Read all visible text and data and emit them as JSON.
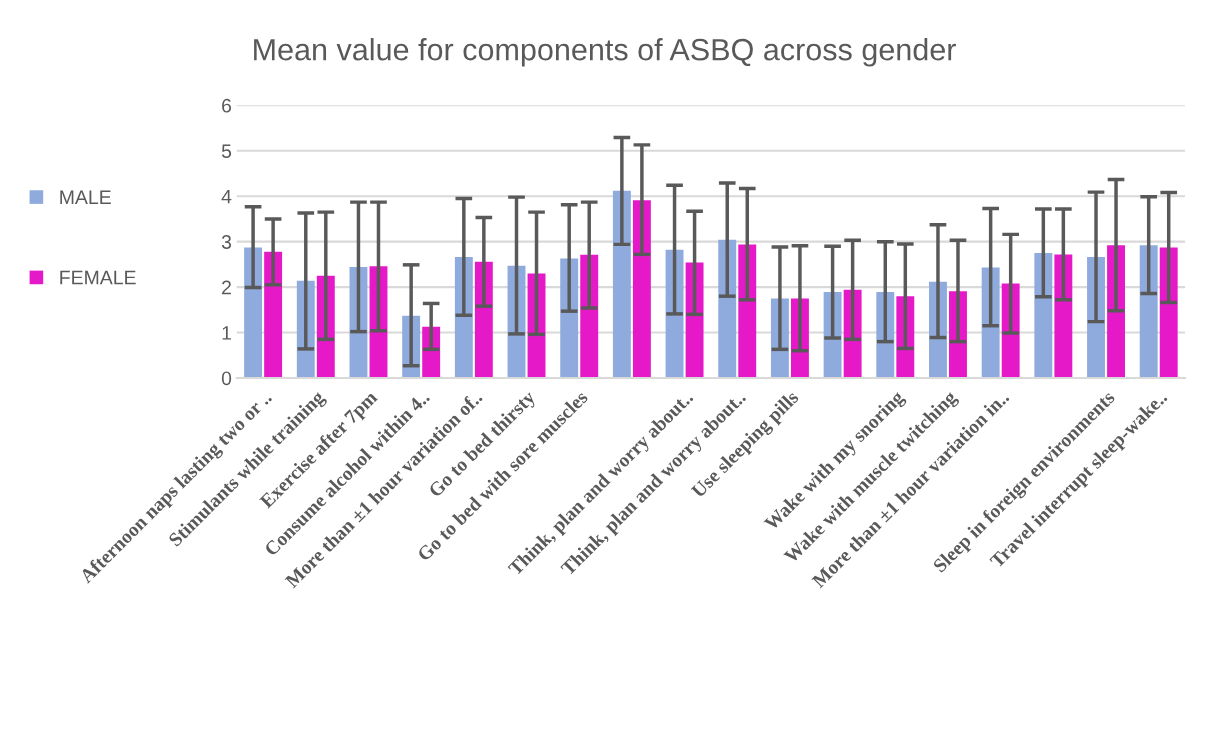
{
  "chart_data": {
    "type": "bar",
    "title": "Mean value for components of ASBQ across gender",
    "categories": [
      "Afternoon naps lasting two or ..",
      "Stimulants while training",
      "Exercise after 7pm",
      "Consume alcohol within 4..",
      "More than ±1 hour variation of..",
      "Go to bed thirsty",
      "Go to bed with sore muscles",
      null,
      "Think, plan and worry about..",
      "Think, plan and worry about..",
      "Use sleeping pills",
      null,
      "Wake with my snoring",
      "Wake with muscle twitching",
      "More than ±1 hour variation in..",
      null,
      "Sleep in foreign environments",
      "Travel interrupt sleep-wake.."
    ],
    "series": [
      {
        "name": "MALE",
        "color": "#8faadc",
        "values": [
          2.87,
          2.14,
          2.44,
          1.37,
          2.66,
          2.47,
          2.63,
          4.12,
          2.82,
          3.04,
          1.75,
          1.89,
          1.89,
          2.12,
          2.43,
          2.75,
          2.66,
          2.92
        ],
        "errors": [
          [
            1.99,
            3.77
          ],
          [
            0.64,
            3.63
          ],
          [
            1.02,
            3.87
          ],
          [
            0.27,
            2.49
          ],
          [
            1.38,
            3.95
          ],
          [
            0.97,
            3.98
          ],
          [
            1.47,
            3.81
          ],
          [
            2.94,
            5.29
          ],
          [
            1.41,
            4.24
          ],
          [
            1.8,
            4.29
          ],
          [
            0.63,
            2.88
          ],
          [
            0.88,
            2.9
          ],
          [
            0.8,
            3.0
          ],
          [
            0.89,
            3.37
          ],
          [
            1.15,
            3.73
          ],
          [
            1.79,
            3.72
          ],
          [
            1.24,
            4.09
          ],
          [
            1.86,
            3.99
          ]
        ]
      },
      {
        "name": "FEMALE",
        "color": "#e619c8",
        "values": [
          2.78,
          2.25,
          2.46,
          1.13,
          2.56,
          2.3,
          2.71,
          3.91,
          2.54,
          2.94,
          1.75,
          1.94,
          1.8,
          1.91,
          2.08,
          2.72,
          2.92,
          2.87
        ],
        "errors": [
          [
            2.05,
            3.5
          ],
          [
            0.85,
            3.65
          ],
          [
            1.04,
            3.87
          ],
          [
            0.63,
            1.64
          ],
          [
            1.58,
            3.53
          ],
          [
            0.96,
            3.65
          ],
          [
            1.54,
            3.87
          ],
          [
            2.72,
            5.13
          ],
          [
            1.4,
            3.67
          ],
          [
            1.72,
            4.17
          ],
          [
            0.6,
            2.91
          ],
          [
            0.85,
            3.03
          ],
          [
            0.65,
            2.95
          ],
          [
            0.8,
            3.03
          ],
          [
            0.99,
            3.16
          ],
          [
            1.72,
            3.72
          ],
          [
            1.48,
            4.37
          ],
          [
            1.66,
            4.08
          ]
        ]
      }
    ],
    "ylim": [
      0,
      6
    ],
    "yticks": [
      0,
      1,
      2,
      3,
      4,
      5,
      6
    ],
    "grid": "y",
    "legend": "left"
  }
}
